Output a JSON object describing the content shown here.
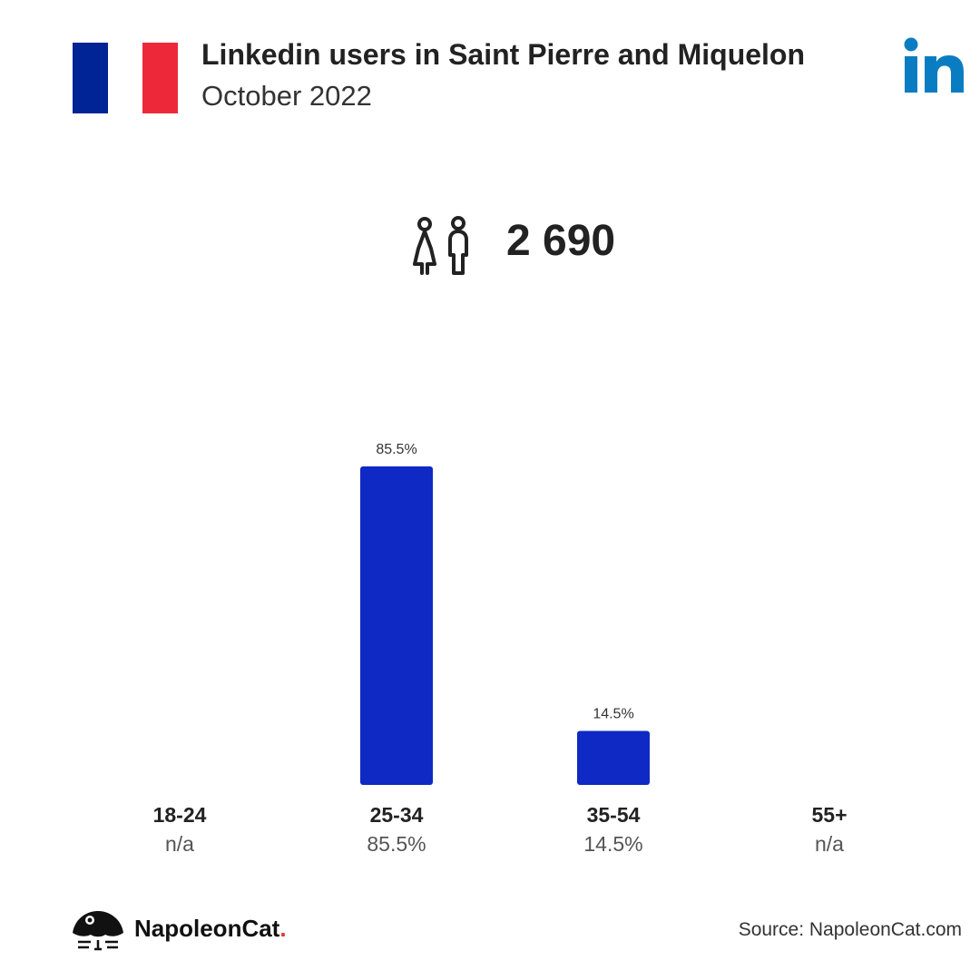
{
  "header": {
    "title": "Linkedin users in Saint Pierre and Miquelon",
    "subtitle": "October 2022",
    "flag_colors": [
      "#002395",
      "#ffffff",
      "#ed2939"
    ],
    "logo_icon": "linkedin-logo-icon",
    "logo_color": "#0a7dc2"
  },
  "summary": {
    "icon": "people-icon",
    "total_users": "2 690"
  },
  "chart_data": {
    "type": "bar",
    "categories": [
      "18-24",
      "25-34",
      "35-54",
      "55+"
    ],
    "values": [
      null,
      85.5,
      14.5,
      null
    ],
    "bar_labels": [
      "",
      "85.5%",
      "14.5%",
      ""
    ],
    "category_values": [
      "n/a",
      "85.5%",
      "14.5%",
      "n/a"
    ],
    "bar_color": "#0f29c4",
    "ylim": [
      0,
      85.5
    ],
    "grid": false,
    "title": "",
    "xlabel": "",
    "ylabel": ""
  },
  "footer": {
    "brand": "NapoleonCat",
    "brand_dot": ".",
    "brand_icon": "napoleoncat-logo-icon",
    "source": "Source: NapoleonCat.com"
  }
}
